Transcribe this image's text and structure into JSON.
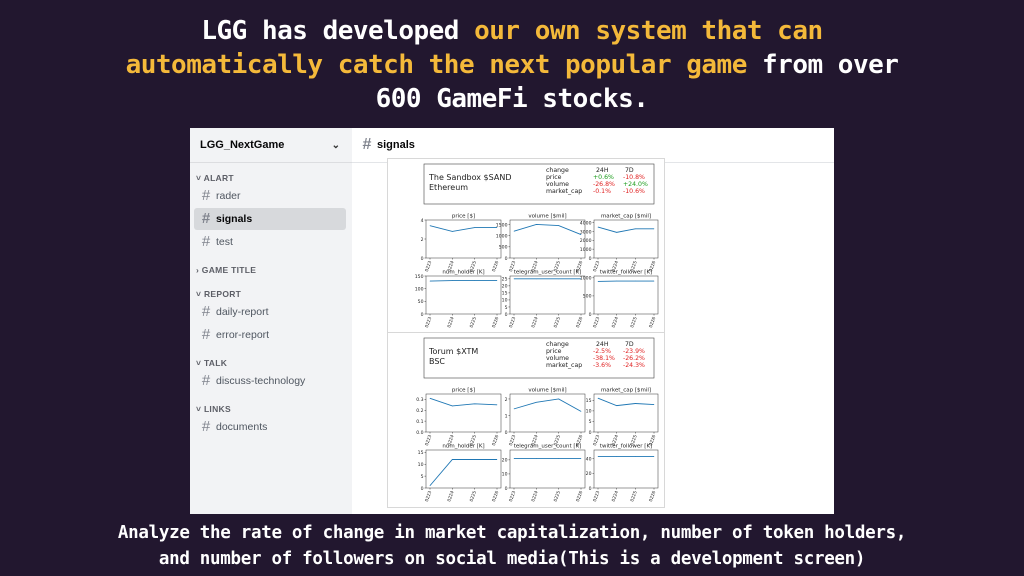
{
  "headline": {
    "line1_white": "LGG has developed ",
    "line1_yellow": "our own system that can",
    "line2_yellow": "automatically catch the next popular game",
    "line2_white": " from over",
    "line3": "600 GameFi stocks.",
    "accent_color": "#f4b93a"
  },
  "caption": {
    "line1": "Analyze the rate of change in market capitalization, number of token holders,",
    "line2": "and number of followers on social media(This is a development screen)"
  },
  "sidebar": {
    "server_name": "LGG_NextGame",
    "categories": [
      {
        "label": "ALART",
        "channels": [
          "rader",
          "signals",
          "test"
        ]
      },
      {
        "label": "GAME TITLE",
        "channels": []
      },
      {
        "label": "REPORT",
        "channels": [
          "daily-report",
          "error-report"
        ]
      },
      {
        "label": "TALK",
        "channels": [
          "discuss-technology"
        ]
      },
      {
        "label": "LINKS",
        "channels": [
          "documents"
        ]
      }
    ],
    "active_channel": "signals"
  },
  "channel_header": {
    "name": "signals"
  },
  "signals": [
    {
      "token": "The Sandbox $SAND",
      "chain": "Ethereum",
      "table": {
        "headers": [
          "change",
          "24H",
          "7D"
        ],
        "rows": [
          {
            "metric": "price",
            "h24": "+0.6%",
            "d7": "-10.8%"
          },
          {
            "metric": "volume",
            "h24": "-26.8%",
            "d7": "+24.0%"
          },
          {
            "metric": "market_cap",
            "h24": "-0.1%",
            "d7": "-10.6%"
          }
        ]
      },
      "chart_data": [
        {
          "type": "line",
          "title": "price [$]",
          "x": [
            "0223",
            "0224",
            "0225",
            "0226"
          ],
          "values": [
            3.4,
            2.8,
            3.2,
            3.2
          ],
          "ylim": [
            0,
            4
          ],
          "yticks": [
            "4",
            "2",
            "0"
          ]
        },
        {
          "type": "line",
          "title": "volume [$mil]",
          "x": [
            "0223",
            "0224",
            "0225",
            "0226"
          ],
          "values": [
            1200,
            1500,
            1450,
            1050
          ],
          "ylim": [
            0,
            1700
          ],
          "yticks": [
            "1500",
            "1000",
            "500",
            "0"
          ]
        },
        {
          "type": "line",
          "title": "market_cap [$mil]",
          "x": [
            "0223",
            "0224",
            "0225",
            "0226"
          ],
          "values": [
            3500,
            2900,
            3300,
            3300
          ],
          "ylim": [
            0,
            4300
          ],
          "yticks": [
            "4000",
            "3000",
            "2000",
            "1000",
            "0"
          ]
        },
        {
          "type": "line",
          "title": "num_holder [K]",
          "x": [
            "0223",
            "0224",
            "0225",
            "0226"
          ],
          "values": [
            130,
            132,
            132,
            132
          ],
          "ylim": [
            0,
            150
          ],
          "yticks": [
            "150",
            "100",
            "50",
            "0"
          ]
        },
        {
          "type": "line",
          "title": "telegram_user_count [K]",
          "x": [
            "0223",
            "0224",
            "0225",
            "0226"
          ],
          "values": [
            25,
            25,
            25,
            25
          ],
          "ylim": [
            0,
            27
          ],
          "yticks": [
            "25",
            "20",
            "15",
            "10",
            "5",
            "0"
          ]
        },
        {
          "type": "line",
          "title": "twitter_follower [K]",
          "x": [
            "0223",
            "0224",
            "0225",
            "0226"
          ],
          "values": [
            900,
            910,
            910,
            910
          ],
          "ylim": [
            0,
            1050
          ],
          "yticks": [
            "1000",
            "500",
            "0"
          ]
        }
      ]
    },
    {
      "token": "Torum $XTM",
      "chain": "BSC",
      "table": {
        "headers": [
          "change",
          "24H",
          "7D"
        ],
        "rows": [
          {
            "metric": "price",
            "h24": "-2.5%",
            "d7": "-23.9%"
          },
          {
            "metric": "volume",
            "h24": "-38.1%",
            "d7": "-26.2%"
          },
          {
            "metric": "market_cap",
            "h24": "-3.6%",
            "d7": "-24.3%"
          }
        ]
      },
      "chart_data": [
        {
          "type": "line",
          "title": "price [$]",
          "x": [
            "0223",
            "0224",
            "0225",
            "0226"
          ],
          "values": [
            0.31,
            0.24,
            0.26,
            0.25
          ],
          "ylim": [
            0,
            0.35
          ],
          "yticks": [
            "0.3",
            "0.2",
            "0.1",
            "0.0"
          ]
        },
        {
          "type": "line",
          "title": "volume [$mil]",
          "x": [
            "0223",
            "0224",
            "0225",
            "0226"
          ],
          "values": [
            1.4,
            1.8,
            2.0,
            1.25
          ],
          "ylim": [
            0,
            2.3
          ],
          "yticks": [
            "2",
            "1",
            "0"
          ]
        },
        {
          "type": "line",
          "title": "market_cap [$mil]",
          "x": [
            "0223",
            "0224",
            "0225",
            "0226"
          ],
          "values": [
            16,
            12.5,
            13.5,
            13
          ],
          "ylim": [
            0,
            18
          ],
          "yticks": [
            "15",
            "10",
            "5",
            "0"
          ]
        },
        {
          "type": "line",
          "title": "num_holder [K]",
          "x": [
            "0223",
            "0224",
            "0225",
            "0226"
          ],
          "values": [
            1,
            12,
            12,
            12
          ],
          "ylim": [
            0,
            16
          ],
          "yticks": [
            "15",
            "10",
            "5",
            "0"
          ]
        },
        {
          "type": "line",
          "title": "telegram_user_count [K]",
          "x": [
            "0223",
            "0224",
            "0225",
            "0226"
          ],
          "values": [
            21,
            21,
            21,
            21
          ],
          "ylim": [
            0,
            27
          ],
          "yticks": [
            "20",
            "10",
            "0"
          ]
        },
        {
          "type": "line",
          "title": "twitter_follower [K]",
          "x": [
            "0223",
            "0224",
            "0225",
            "0226"
          ],
          "values": [
            43,
            43,
            43,
            43
          ],
          "ylim": [
            0,
            52
          ],
          "yticks": [
            "40",
            "20",
            "0"
          ]
        }
      ]
    }
  ],
  "colors": {
    "positive": "#1a9c1a",
    "negative": "#e02020",
    "line": "#1f77b4"
  }
}
